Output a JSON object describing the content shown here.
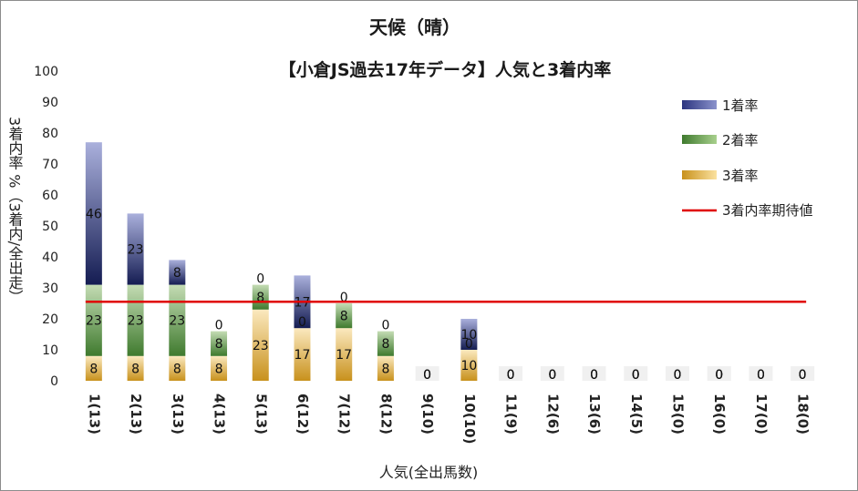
{
  "chart_data": {
    "type": "bar",
    "stacked": true,
    "title": "天候（晴）",
    "subtitle": "【小倉JS過去17年データ】人気と3着内率",
    "xlabel": "人気(全出馬数)",
    "ylabel": "3着内率 %（3着内/全出走）",
    "ylim": [
      0,
      100
    ],
    "yticks": [
      0,
      10,
      20,
      30,
      40,
      50,
      60,
      70,
      80,
      90,
      100
    ],
    "categories": [
      "1(13)",
      "2(13)",
      "3(13)",
      "4(13)",
      "5(13)",
      "6(12)",
      "7(12)",
      "8(12)",
      "9(10)",
      "10(10)",
      "11(9)",
      "12(6)",
      "13(6)",
      "14(5)",
      "15(0)",
      "16(0)",
      "17(0)",
      "18(0)"
    ],
    "series": [
      {
        "name": "3着率",
        "color": "#f2c14e",
        "values": [
          8,
          8,
          8,
          8,
          23,
          17,
          17,
          8,
          0,
          10,
          0,
          0,
          0,
          0,
          0,
          0,
          0,
          0
        ]
      },
      {
        "name": "2着率",
        "color": "#5b9b42",
        "values": [
          23,
          23,
          23,
          8,
          8,
          0,
          8,
          8,
          0,
          0,
          0,
          0,
          0,
          0,
          0,
          0,
          0,
          0
        ]
      },
      {
        "name": "1着率",
        "color": "#2b347f",
        "values": [
          46,
          23,
          8,
          0,
          0,
          17,
          0,
          0,
          0,
          10,
          0,
          0,
          0,
          0,
          0,
          0,
          0,
          0
        ]
      }
    ],
    "expected_line": {
      "name": "3着内率期待値",
      "value": 25.5,
      "color": "#e00000"
    },
    "legend_position": "right",
    "grid": false
  }
}
